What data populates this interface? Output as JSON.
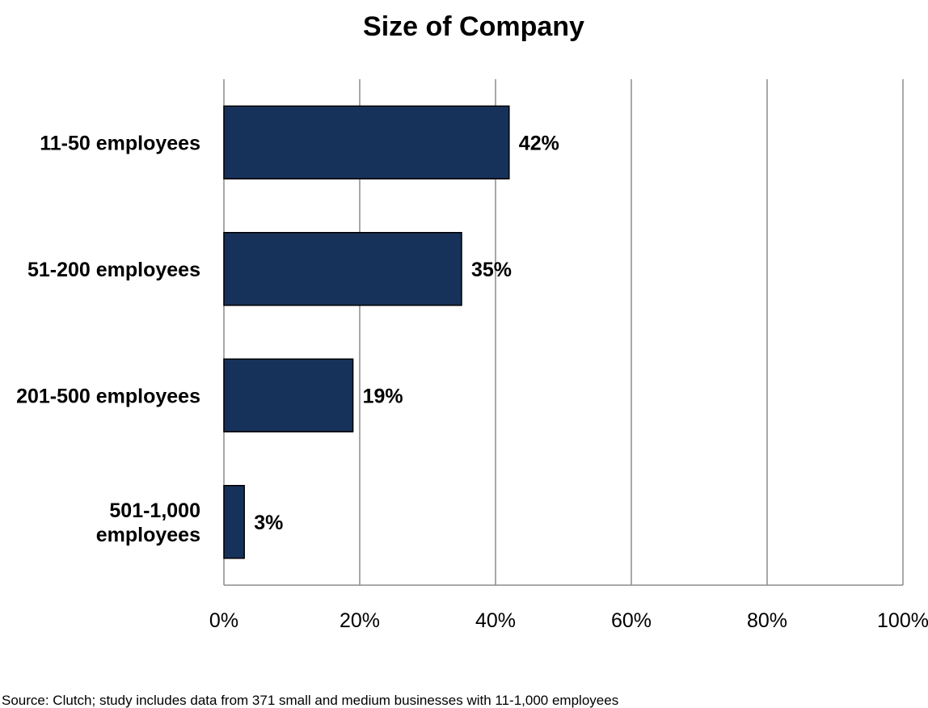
{
  "chart_data": {
    "type": "bar",
    "orientation": "horizontal",
    "title": "Size of Company",
    "categories": [
      [
        "11-50 employees"
      ],
      [
        "51-200 employees"
      ],
      [
        "201-500 employees"
      ],
      [
        "501-1,000",
        "employees"
      ]
    ],
    "values": [
      42,
      35,
      19,
      3
    ],
    "data_labels": [
      "42%",
      "35%",
      "19%",
      "3%"
    ],
    "xlim": [
      0,
      100
    ],
    "x_ticks": [
      0,
      20,
      40,
      60,
      80,
      100
    ],
    "x_tick_labels": [
      "0%",
      "20%",
      "40%",
      "60%",
      "80%",
      "100%"
    ],
    "grid": "vertical",
    "legend": "none",
    "bar_color": "#17325a",
    "bar_border_color": "#000000",
    "grid_color": "#8c8c8c"
  },
  "footer": {
    "source": "Source: Clutch; study includes data from 371 small and medium businesses with 11-1,000 employees"
  }
}
